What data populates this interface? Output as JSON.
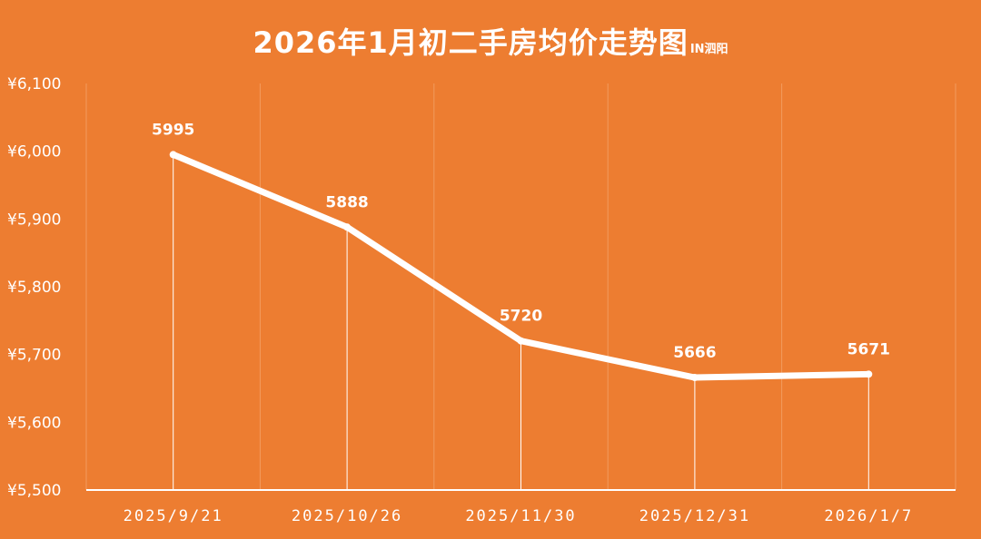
{
  "chart_data": {
    "type": "line",
    "title": "2026年1月初二手房均价走势图",
    "subtitle": "IN泗阳",
    "categories": [
      "2025/9/21",
      "2025/10/26",
      "2025/11/30",
      "2025/12/31",
      "2026/1/7"
    ],
    "series": [
      {
        "values": [
          5995,
          5888,
          5720,
          5666,
          5671
        ]
      }
    ],
    "data_labels": [
      "5995",
      "5888",
      "5720",
      "5666",
      "5671"
    ],
    "ylim": [
      5500,
      6100
    ],
    "yticks": [
      5500,
      5600,
      5700,
      5800,
      5900,
      6000,
      6100
    ],
    "ytick_labels": [
      "¥5,500",
      "¥5,600",
      "¥5,700",
      "¥5,800",
      "¥5,900",
      "¥6,000",
      "¥6,100"
    ],
    "grid": "vertical",
    "drop_lines": true,
    "legend": "none",
    "xlabel": "",
    "ylabel": "",
    "colors": {
      "background": "#ED7D31",
      "line": "#ffffff",
      "gridline": "#F29B5E",
      "text": "#ffffff"
    }
  }
}
